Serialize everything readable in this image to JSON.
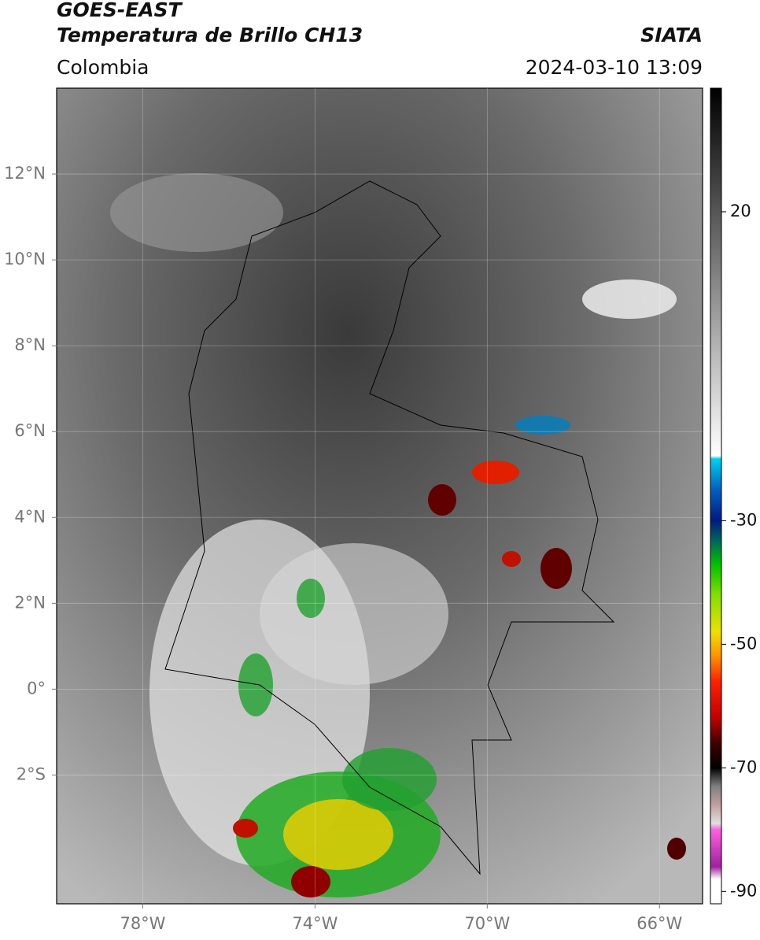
{
  "header": {
    "satellite": "GOES-EAST",
    "product": "Temperatura de Brillo CH13",
    "agency": "SIATA",
    "region": "Colombia",
    "datetime": "2024-03-10 13:09"
  },
  "map": {
    "xlim": [
      -80,
      -65
    ],
    "ylim": [
      -5,
      14
    ],
    "xticks": [
      {
        "value": -78,
        "label": "78°W"
      },
      {
        "value": -74,
        "label": "74°W"
      },
      {
        "value": -70,
        "label": "70°W"
      },
      {
        "value": -66,
        "label": "66°W"
      }
    ],
    "yticks": [
      {
        "value": 12,
        "label": "12°N"
      },
      {
        "value": 10,
        "label": "10°N"
      },
      {
        "value": 8,
        "label": "8°N"
      },
      {
        "value": 6,
        "label": "6°N"
      },
      {
        "value": 4,
        "label": "4°N"
      },
      {
        "value": 2,
        "label": "2°N"
      },
      {
        "value": 0,
        "label": "0°"
      },
      {
        "value": -2,
        "label": "2°S"
      }
    ],
    "grid": true
  },
  "colorbar": {
    "lim": [
      -92,
      40
    ],
    "ticks": [
      20,
      -30,
      -50,
      -70,
      -90
    ],
    "colormap": [
      {
        "value": 40,
        "color": "#000000"
      },
      {
        "value": -19.5,
        "color": "#ffffff"
      },
      {
        "value": -20,
        "color": "#00d0f0"
      },
      {
        "value": -25,
        "color": "#0060c0"
      },
      {
        "value": -30,
        "color": "#001a80"
      },
      {
        "value": -33,
        "color": "#006060"
      },
      {
        "value": -37,
        "color": "#00c000"
      },
      {
        "value": -42,
        "color": "#80e000"
      },
      {
        "value": -48,
        "color": "#f0e000"
      },
      {
        "value": -52,
        "color": "#ff9000"
      },
      {
        "value": -56,
        "color": "#ff2000"
      },
      {
        "value": -62,
        "color": "#c00000"
      },
      {
        "value": -66,
        "color": "#400000"
      },
      {
        "value": -70,
        "color": "#000000"
      },
      {
        "value": -73,
        "color": "#808080"
      },
      {
        "value": -76,
        "color": "#c0a0a0"
      },
      {
        "value": -79,
        "color": "#e0e0e0"
      },
      {
        "value": -80,
        "color": "#ff60e0"
      },
      {
        "value": -86,
        "color": "#a020a0"
      },
      {
        "value": -88,
        "color": "#ffffff"
      },
      {
        "value": -92,
        "color": "#ffffff"
      }
    ]
  }
}
